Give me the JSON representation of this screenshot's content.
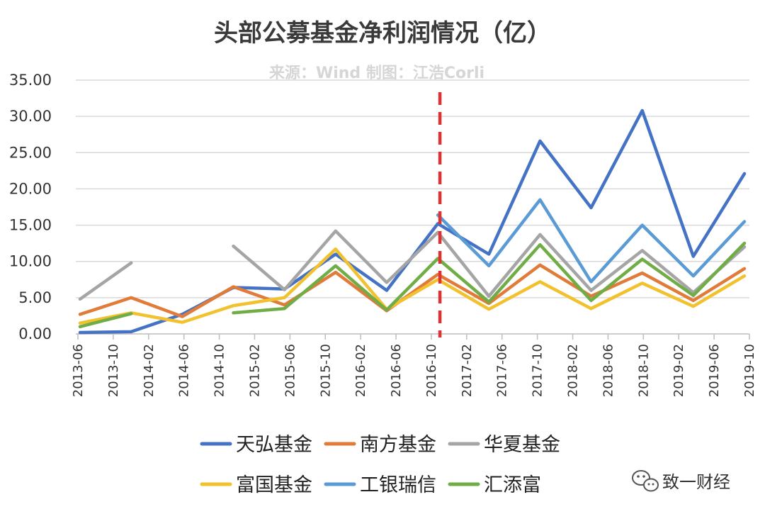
{
  "chart_data": {
    "type": "line",
    "title": "头部公募基金净利润情况（亿）",
    "subtitle": "来源：Wind 制图：江浩Corli",
    "ylim": [
      0,
      35
    ],
    "yticks": [
      "0.00",
      "5.00",
      "10.00",
      "15.00",
      "20.00",
      "25.00",
      "30.00",
      "35.00"
    ],
    "x": [
      "2013-06",
      "2013-12",
      "2014-06",
      "2014-12",
      "2015-06",
      "2015-12",
      "2016-06",
      "2016-12",
      "2017-06",
      "2017-12",
      "2018-06",
      "2018-12",
      "2019-06",
      "2019-12"
    ],
    "xtick_labels": [
      "2013-06",
      "2013-10",
      "2014-02",
      "2014-06",
      "2014-10",
      "2015-02",
      "2015-06",
      "2015-10",
      "2016-02",
      "2016-06",
      "2016-10",
      "2017-02",
      "2017-06",
      "2017-10",
      "2018-02",
      "2018-06",
      "2018-10",
      "2019-02",
      "2019-06",
      "2019-10"
    ],
    "grid": true,
    "legend_position": "bottom",
    "annotations": [
      {
        "type": "vertical-dashed-line",
        "at": "2016-12",
        "color": "#e03030"
      }
    ],
    "series": [
      {
        "name": "天弘基金",
        "color": "#4472c4",
        "values": [
          0.2,
          0.3,
          2.7,
          6.4,
          6.2,
          11.0,
          6.0,
          15.2,
          11.0,
          26.6,
          17.4,
          30.8,
          10.7,
          22.1
        ]
      },
      {
        "name": "南方基金",
        "color": "#e07b39",
        "values": [
          2.7,
          5.0,
          2.4,
          6.5,
          4.0,
          8.5,
          3.2,
          8.2,
          4.2,
          9.5,
          5.2,
          8.4,
          4.6,
          9.0
        ]
      },
      {
        "name": "华夏基金",
        "color": "#a5a5a5",
        "values": [
          4.8,
          9.8,
          null,
          12.1,
          6.1,
          14.2,
          7.1,
          14.0,
          5.2,
          13.7,
          6.0,
          11.5,
          5.7,
          12.0
        ]
      },
      {
        "name": "富国基金",
        "color": "#f2c12e",
        "values": [
          1.5,
          2.9,
          1.6,
          3.9,
          5.0,
          11.7,
          3.4,
          7.5,
          3.4,
          7.2,
          3.5,
          7.0,
          3.8,
          8.0
        ]
      },
      {
        "name": "工银瑞信",
        "color": "#5b9bd5",
        "values": [
          null,
          null,
          null,
          null,
          null,
          null,
          null,
          16.4,
          9.4,
          18.5,
          7.2,
          15.0,
          8.0,
          15.5
        ]
      },
      {
        "name": "汇添富",
        "color": "#70ad47",
        "values": [
          1.0,
          2.8,
          null,
          2.9,
          3.5,
          9.4,
          3.3,
          10.4,
          4.4,
          12.3,
          4.6,
          10.3,
          5.3,
          12.5
        ]
      }
    ]
  },
  "watermark": {
    "icon": "wechat-icon",
    "text": "致一财经"
  }
}
